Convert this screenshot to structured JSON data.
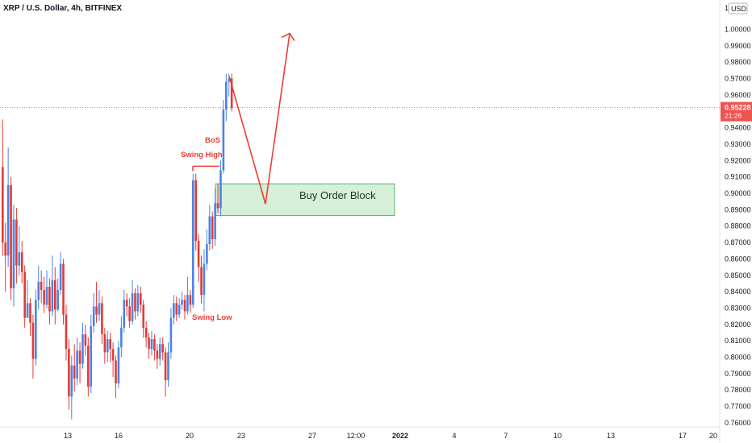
{
  "header": {
    "symbol_title": "XRP / U.S. Dollar, 4h, BITFINEX"
  },
  "price_scale": {
    "top_value": "1",
    "currency": "USD"
  },
  "last_price": {
    "value": "0.95228",
    "countdown": "21:26",
    "color": "#ef5350"
  },
  "colors": {
    "up": "#4b83e6",
    "down": "#e53935",
    "annotation": "#ef3b36",
    "order_block_fill": "#d6efd8",
    "order_block_stroke": "#59b96a"
  },
  "annotations": {
    "bos": "BoS",
    "swing_high": "Swing High",
    "swing_low": "Swing Low",
    "order_block": "Buy Order Block"
  },
  "chart_data": {
    "type": "candlestick",
    "title": "XRP / U.S. Dollar, 4h, BITFINEX",
    "ylim": [
      0.757,
      1.002
    ],
    "y_ticks": [
      "1.00000",
      "0.99000",
      "0.98000",
      "0.97000",
      "0.96000",
      "0.95000",
      "0.94000",
      "0.93000",
      "0.92000",
      "0.91000",
      "0.90000",
      "0.89000",
      "0.88000",
      "0.87000",
      "0.86000",
      "0.85000",
      "0.84000",
      "0.83000",
      "0.82000",
      "0.81000",
      "0.80000",
      "0.79000",
      "0.78000",
      "0.77000",
      "0.76000"
    ],
    "x_ticks": [
      {
        "label": "13",
        "bold": false
      },
      {
        "label": "16",
        "bold": false
      },
      {
        "label": "20",
        "bold": false
      },
      {
        "label": "23",
        "bold": false
      },
      {
        "label": "27",
        "bold": false
      },
      {
        "label": "12:00",
        "bold": false
      },
      {
        "label": "2022",
        "bold": true
      },
      {
        "label": "4",
        "bold": false
      },
      {
        "label": "7",
        "bold": false
      },
      {
        "label": "10",
        "bold": false
      },
      {
        "label": "13",
        "bold": false
      },
      {
        "label": "17",
        "bold": false
      },
      {
        "label": "20",
        "bold": false
      }
    ],
    "order_block": {
      "low": 0.8865,
      "high": 0.9058
    },
    "swing_high_level": 0.9165,
    "projection": [
      0.9715,
      0.8935,
      0.9975
    ],
    "candles": [
      [
        0.916,
        0.87,
        0.945,
        0.862
      ],
      [
        0.87,
        0.862,
        0.882,
        0.84
      ],
      [
        0.862,
        0.905,
        0.928,
        0.855
      ],
      [
        0.905,
        0.842,
        0.91,
        0.835
      ],
      [
        0.842,
        0.884,
        0.893,
        0.831
      ],
      [
        0.884,
        0.856,
        0.891,
        0.845
      ],
      [
        0.856,
        0.864,
        0.88,
        0.85
      ],
      [
        0.864,
        0.852,
        0.871,
        0.845
      ],
      [
        0.852,
        0.824,
        0.856,
        0.818
      ],
      [
        0.824,
        0.833,
        0.847,
        0.826
      ],
      [
        0.833,
        0.821,
        0.836,
        0.813
      ],
      [
        0.821,
        0.799,
        0.826,
        0.787
      ],
      [
        0.799,
        0.835,
        0.841,
        0.795
      ],
      [
        0.835,
        0.846,
        0.856,
        0.829
      ],
      [
        0.846,
        0.841,
        0.853,
        0.833
      ],
      [
        0.841,
        0.832,
        0.849,
        0.827
      ],
      [
        0.832,
        0.843,
        0.853,
        0.83
      ],
      [
        0.843,
        0.828,
        0.848,
        0.82
      ],
      [
        0.828,
        0.847,
        0.862,
        0.825
      ],
      [
        0.847,
        0.829,
        0.855,
        0.82
      ],
      [
        0.829,
        0.841,
        0.848,
        0.828
      ],
      [
        0.841,
        0.857,
        0.864,
        0.838
      ],
      [
        0.857,
        0.826,
        0.86,
        0.82
      ],
      [
        0.826,
        0.805,
        0.832,
        0.798
      ],
      [
        0.805,
        0.776,
        0.811,
        0.768
      ],
      [
        0.776,
        0.795,
        0.801,
        0.762
      ],
      [
        0.795,
        0.787,
        0.808,
        0.779
      ],
      [
        0.787,
        0.804,
        0.812,
        0.783
      ],
      [
        0.804,
        0.796,
        0.809,
        0.784
      ],
      [
        0.796,
        0.814,
        0.821,
        0.793
      ],
      [
        0.814,
        0.807,
        0.82,
        0.801
      ],
      [
        0.807,
        0.782,
        0.812,
        0.776
      ],
      [
        0.782,
        0.819,
        0.826,
        0.778
      ],
      [
        0.819,
        0.831,
        0.839,
        0.815
      ],
      [
        0.831,
        0.826,
        0.846,
        0.821
      ],
      [
        0.826,
        0.833,
        0.841,
        0.822
      ],
      [
        0.833,
        0.814,
        0.837,
        0.808
      ],
      [
        0.814,
        0.803,
        0.818,
        0.796
      ],
      [
        0.803,
        0.811,
        0.816,
        0.797
      ],
      [
        0.811,
        0.805,
        0.815,
        0.797
      ],
      [
        0.805,
        0.798,
        0.809,
        0.788
      ],
      [
        0.798,
        0.784,
        0.801,
        0.775
      ],
      [
        0.784,
        0.806,
        0.81,
        0.781
      ],
      [
        0.806,
        0.818,
        0.825,
        0.8
      ],
      [
        0.818,
        0.835,
        0.841,
        0.815
      ],
      [
        0.835,
        0.831,
        0.839,
        0.825
      ],
      [
        0.831,
        0.822,
        0.836,
        0.818
      ],
      [
        0.822,
        0.839,
        0.847,
        0.82
      ],
      [
        0.839,
        0.828,
        0.842,
        0.823
      ],
      [
        0.828,
        0.839,
        0.844,
        0.825
      ],
      [
        0.839,
        0.832,
        0.843,
        0.827
      ],
      [
        0.832,
        0.818,
        0.835,
        0.812
      ],
      [
        0.818,
        0.812,
        0.822,
        0.806
      ],
      [
        0.812,
        0.805,
        0.815,
        0.799
      ],
      [
        0.805,
        0.811,
        0.816,
        0.801
      ],
      [
        0.811,
        0.804,
        0.814,
        0.798
      ],
      [
        0.804,
        0.799,
        0.808,
        0.793
      ],
      [
        0.799,
        0.808,
        0.812,
        0.795
      ],
      [
        0.808,
        0.803,
        0.812,
        0.798
      ],
      [
        0.803,
        0.786,
        0.806,
        0.776
      ],
      [
        0.786,
        0.803,
        0.809,
        0.782
      ],
      [
        0.803,
        0.824,
        0.83,
        0.799
      ],
      [
        0.824,
        0.833,
        0.838,
        0.82
      ],
      [
        0.833,
        0.826,
        0.837,
        0.822
      ],
      [
        0.826,
        0.832,
        0.836,
        0.824
      ],
      [
        0.832,
        0.835,
        0.84,
        0.829
      ],
      [
        0.835,
        0.828,
        0.838,
        0.823
      ],
      [
        0.828,
        0.838,
        0.849,
        0.826
      ],
      [
        0.838,
        0.832,
        0.841,
        0.827
      ],
      [
        0.832,
        0.908,
        0.912,
        0.83
      ],
      [
        0.908,
        0.871,
        0.912,
        0.865
      ],
      [
        0.871,
        0.855,
        0.875,
        0.846
      ],
      [
        0.855,
        0.838,
        0.862,
        0.833
      ],
      [
        0.838,
        0.857,
        0.866,
        0.828
      ],
      [
        0.857,
        0.869,
        0.878,
        0.853
      ],
      [
        0.869,
        0.886,
        0.893,
        0.865
      ],
      [
        0.886,
        0.872,
        0.889,
        0.866
      ],
      [
        0.872,
        0.894,
        0.903,
        0.868
      ],
      [
        0.894,
        0.891,
        0.906,
        0.888
      ],
      [
        0.891,
        0.914,
        0.92,
        0.886
      ],
      [
        0.914,
        0.951,
        0.957,
        0.912
      ],
      [
        0.951,
        0.968,
        0.973,
        0.944
      ],
      [
        0.968,
        0.97,
        0.973,
        0.959
      ],
      [
        0.97,
        0.952,
        0.973,
        0.95
      ]
    ]
  }
}
